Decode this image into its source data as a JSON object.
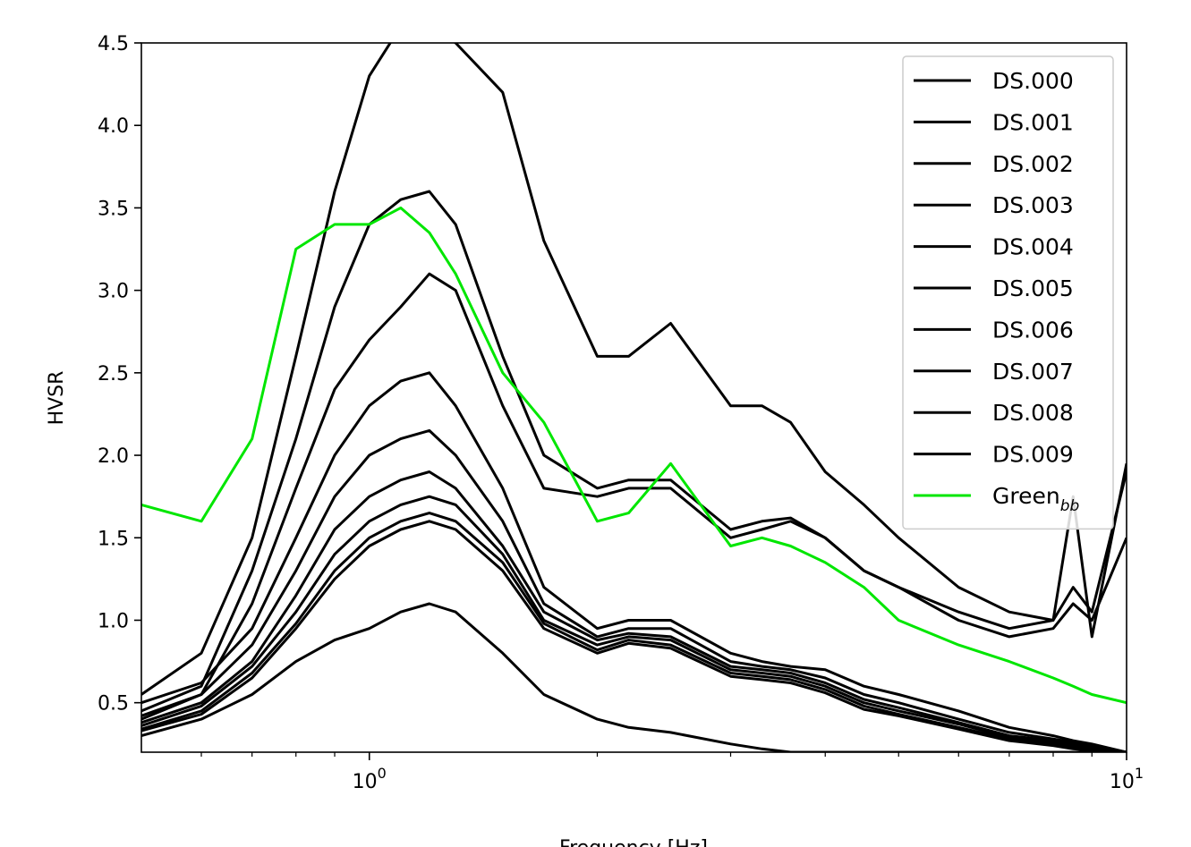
{
  "chart_data": {
    "type": "line",
    "title": "",
    "xlabel": "Frequency [Hz]",
    "ylabel": "HVSR",
    "xscale": "log",
    "xlim": [
      0.5,
      10
    ],
    "ylim": [
      0.2,
      4.5
    ],
    "grid": false,
    "legend_position": "top-right",
    "xticks": [
      {
        "value": 1,
        "base": "10",
        "exp": "0"
      },
      {
        "value": 10,
        "base": "10",
        "exp": "1"
      }
    ],
    "yticks": [
      {
        "value": 0.5,
        "label": "0.5"
      },
      {
        "value": 1.0,
        "label": "1.0"
      },
      {
        "value": 1.5,
        "label": "1.5"
      },
      {
        "value": 2.0,
        "label": "2.0"
      },
      {
        "value": 2.5,
        "label": "2.5"
      },
      {
        "value": 3.0,
        "label": "3.0"
      },
      {
        "value": 3.5,
        "label": "3.5"
      },
      {
        "value": 4.0,
        "label": "4.0"
      },
      {
        "value": 4.5,
        "label": "4.5"
      }
    ],
    "x": [
      0.5,
      0.6,
      0.7,
      0.8,
      0.9,
      1.0,
      1.1,
      1.2,
      1.3,
      1.5,
      1.7,
      2.0,
      2.2,
      2.5,
      3.0,
      3.3,
      3.6,
      4.0,
      4.5,
      5.0,
      6.0,
      7.0,
      8.0,
      8.5,
      9.0,
      10.0
    ],
    "series": [
      {
        "name": "DS.000",
        "color": "#000000",
        "values": [
          0.45,
          0.6,
          1.3,
          2.1,
          2.9,
          3.4,
          3.55,
          3.6,
          3.4,
          2.6,
          2.0,
          1.8,
          1.85,
          1.85,
          1.55,
          1.6,
          1.62,
          1.5,
          1.3,
          1.2,
          1.05,
          0.95,
          1.0,
          1.2,
          1.05,
          1.9
        ]
      },
      {
        "name": "DS.001",
        "color": "#000000",
        "values": [
          0.4,
          0.55,
          1.1,
          1.8,
          2.4,
          2.7,
          2.9,
          3.1,
          3.0,
          2.3,
          1.8,
          1.75,
          1.8,
          1.8,
          1.5,
          1.55,
          1.6,
          1.5,
          1.3,
          1.2,
          1.0,
          0.9,
          0.95,
          1.1,
          1.0,
          1.5
        ]
      },
      {
        "name": "DS.002",
        "color": "#000000",
        "values": [
          0.55,
          0.8,
          1.5,
          2.6,
          3.6,
          4.3,
          4.6,
          4.6,
          4.5,
          4.2,
          3.3,
          2.6,
          2.6,
          2.8,
          2.3,
          2.3,
          2.2,
          1.9,
          1.7,
          1.5,
          1.2,
          1.05,
          1.0,
          1.75,
          0.9,
          1.95
        ]
      },
      {
        "name": "DS.003",
        "color": "#000000",
        "values": [
          0.5,
          0.62,
          0.95,
          1.5,
          2.0,
          2.3,
          2.45,
          2.5,
          2.3,
          1.8,
          1.2,
          0.95,
          1.0,
          1.0,
          0.8,
          0.75,
          0.72,
          0.7,
          0.6,
          0.55,
          0.45,
          0.35,
          0.3,
          0.27,
          0.25,
          0.2
        ]
      },
      {
        "name": "DS.004",
        "color": "#000000",
        "values": [
          0.42,
          0.55,
          0.85,
          1.3,
          1.75,
          2.0,
          2.1,
          2.15,
          2.0,
          1.6,
          1.1,
          0.9,
          0.95,
          0.95,
          0.75,
          0.72,
          0.7,
          0.65,
          0.55,
          0.5,
          0.4,
          0.32,
          0.28,
          0.26,
          0.24,
          0.2
        ]
      },
      {
        "name": "DS.005",
        "color": "#000000",
        "values": [
          0.38,
          0.5,
          0.75,
          1.15,
          1.55,
          1.75,
          1.85,
          1.9,
          1.8,
          1.45,
          1.05,
          0.88,
          0.92,
          0.9,
          0.72,
          0.7,
          0.68,
          0.62,
          0.52,
          0.47,
          0.38,
          0.3,
          0.27,
          0.25,
          0.23,
          0.2
        ]
      },
      {
        "name": "DS.006",
        "color": "#000000",
        "values": [
          0.36,
          0.48,
          0.72,
          1.05,
          1.4,
          1.6,
          1.7,
          1.75,
          1.7,
          1.4,
          1.0,
          0.85,
          0.9,
          0.88,
          0.7,
          0.68,
          0.66,
          0.6,
          0.5,
          0.45,
          0.37,
          0.29,
          0.26,
          0.24,
          0.22,
          0.2
        ]
      },
      {
        "name": "DS.007",
        "color": "#000000",
        "values": [
          0.34,
          0.45,
          0.68,
          0.98,
          1.3,
          1.5,
          1.6,
          1.65,
          1.6,
          1.35,
          0.98,
          0.82,
          0.88,
          0.85,
          0.68,
          0.66,
          0.64,
          0.58,
          0.48,
          0.43,
          0.35,
          0.28,
          0.25,
          0.23,
          0.21,
          0.2
        ]
      },
      {
        "name": "DS.008",
        "color": "#000000",
        "values": [
          0.33,
          0.43,
          0.65,
          0.95,
          1.25,
          1.45,
          1.55,
          1.6,
          1.55,
          1.3,
          0.95,
          0.8,
          0.86,
          0.83,
          0.66,
          0.64,
          0.62,
          0.56,
          0.46,
          0.42,
          0.34,
          0.27,
          0.24,
          0.22,
          0.21,
          0.2
        ]
      },
      {
        "name": "DS.009",
        "color": "#000000",
        "values": [
          0.3,
          0.4,
          0.55,
          0.75,
          0.88,
          0.95,
          1.05,
          1.1,
          1.05,
          0.8,
          0.55,
          0.4,
          0.35,
          0.32,
          0.25,
          0.22,
          0.2,
          0.2,
          0.2,
          0.2,
          0.2,
          0.2,
          0.2,
          0.2,
          0.2,
          0.2
        ]
      },
      {
        "name": "Green_bb",
        "legend_base": "Green",
        "legend_sub": "bb",
        "color": "#00e600",
        "values": [
          1.7,
          1.6,
          2.1,
          3.25,
          3.4,
          3.4,
          3.5,
          3.35,
          3.1,
          2.5,
          2.2,
          1.6,
          1.65,
          1.95,
          1.45,
          1.5,
          1.45,
          1.35,
          1.2,
          1.0,
          0.85,
          0.75,
          0.65,
          0.6,
          0.55,
          0.5
        ]
      }
    ]
  }
}
